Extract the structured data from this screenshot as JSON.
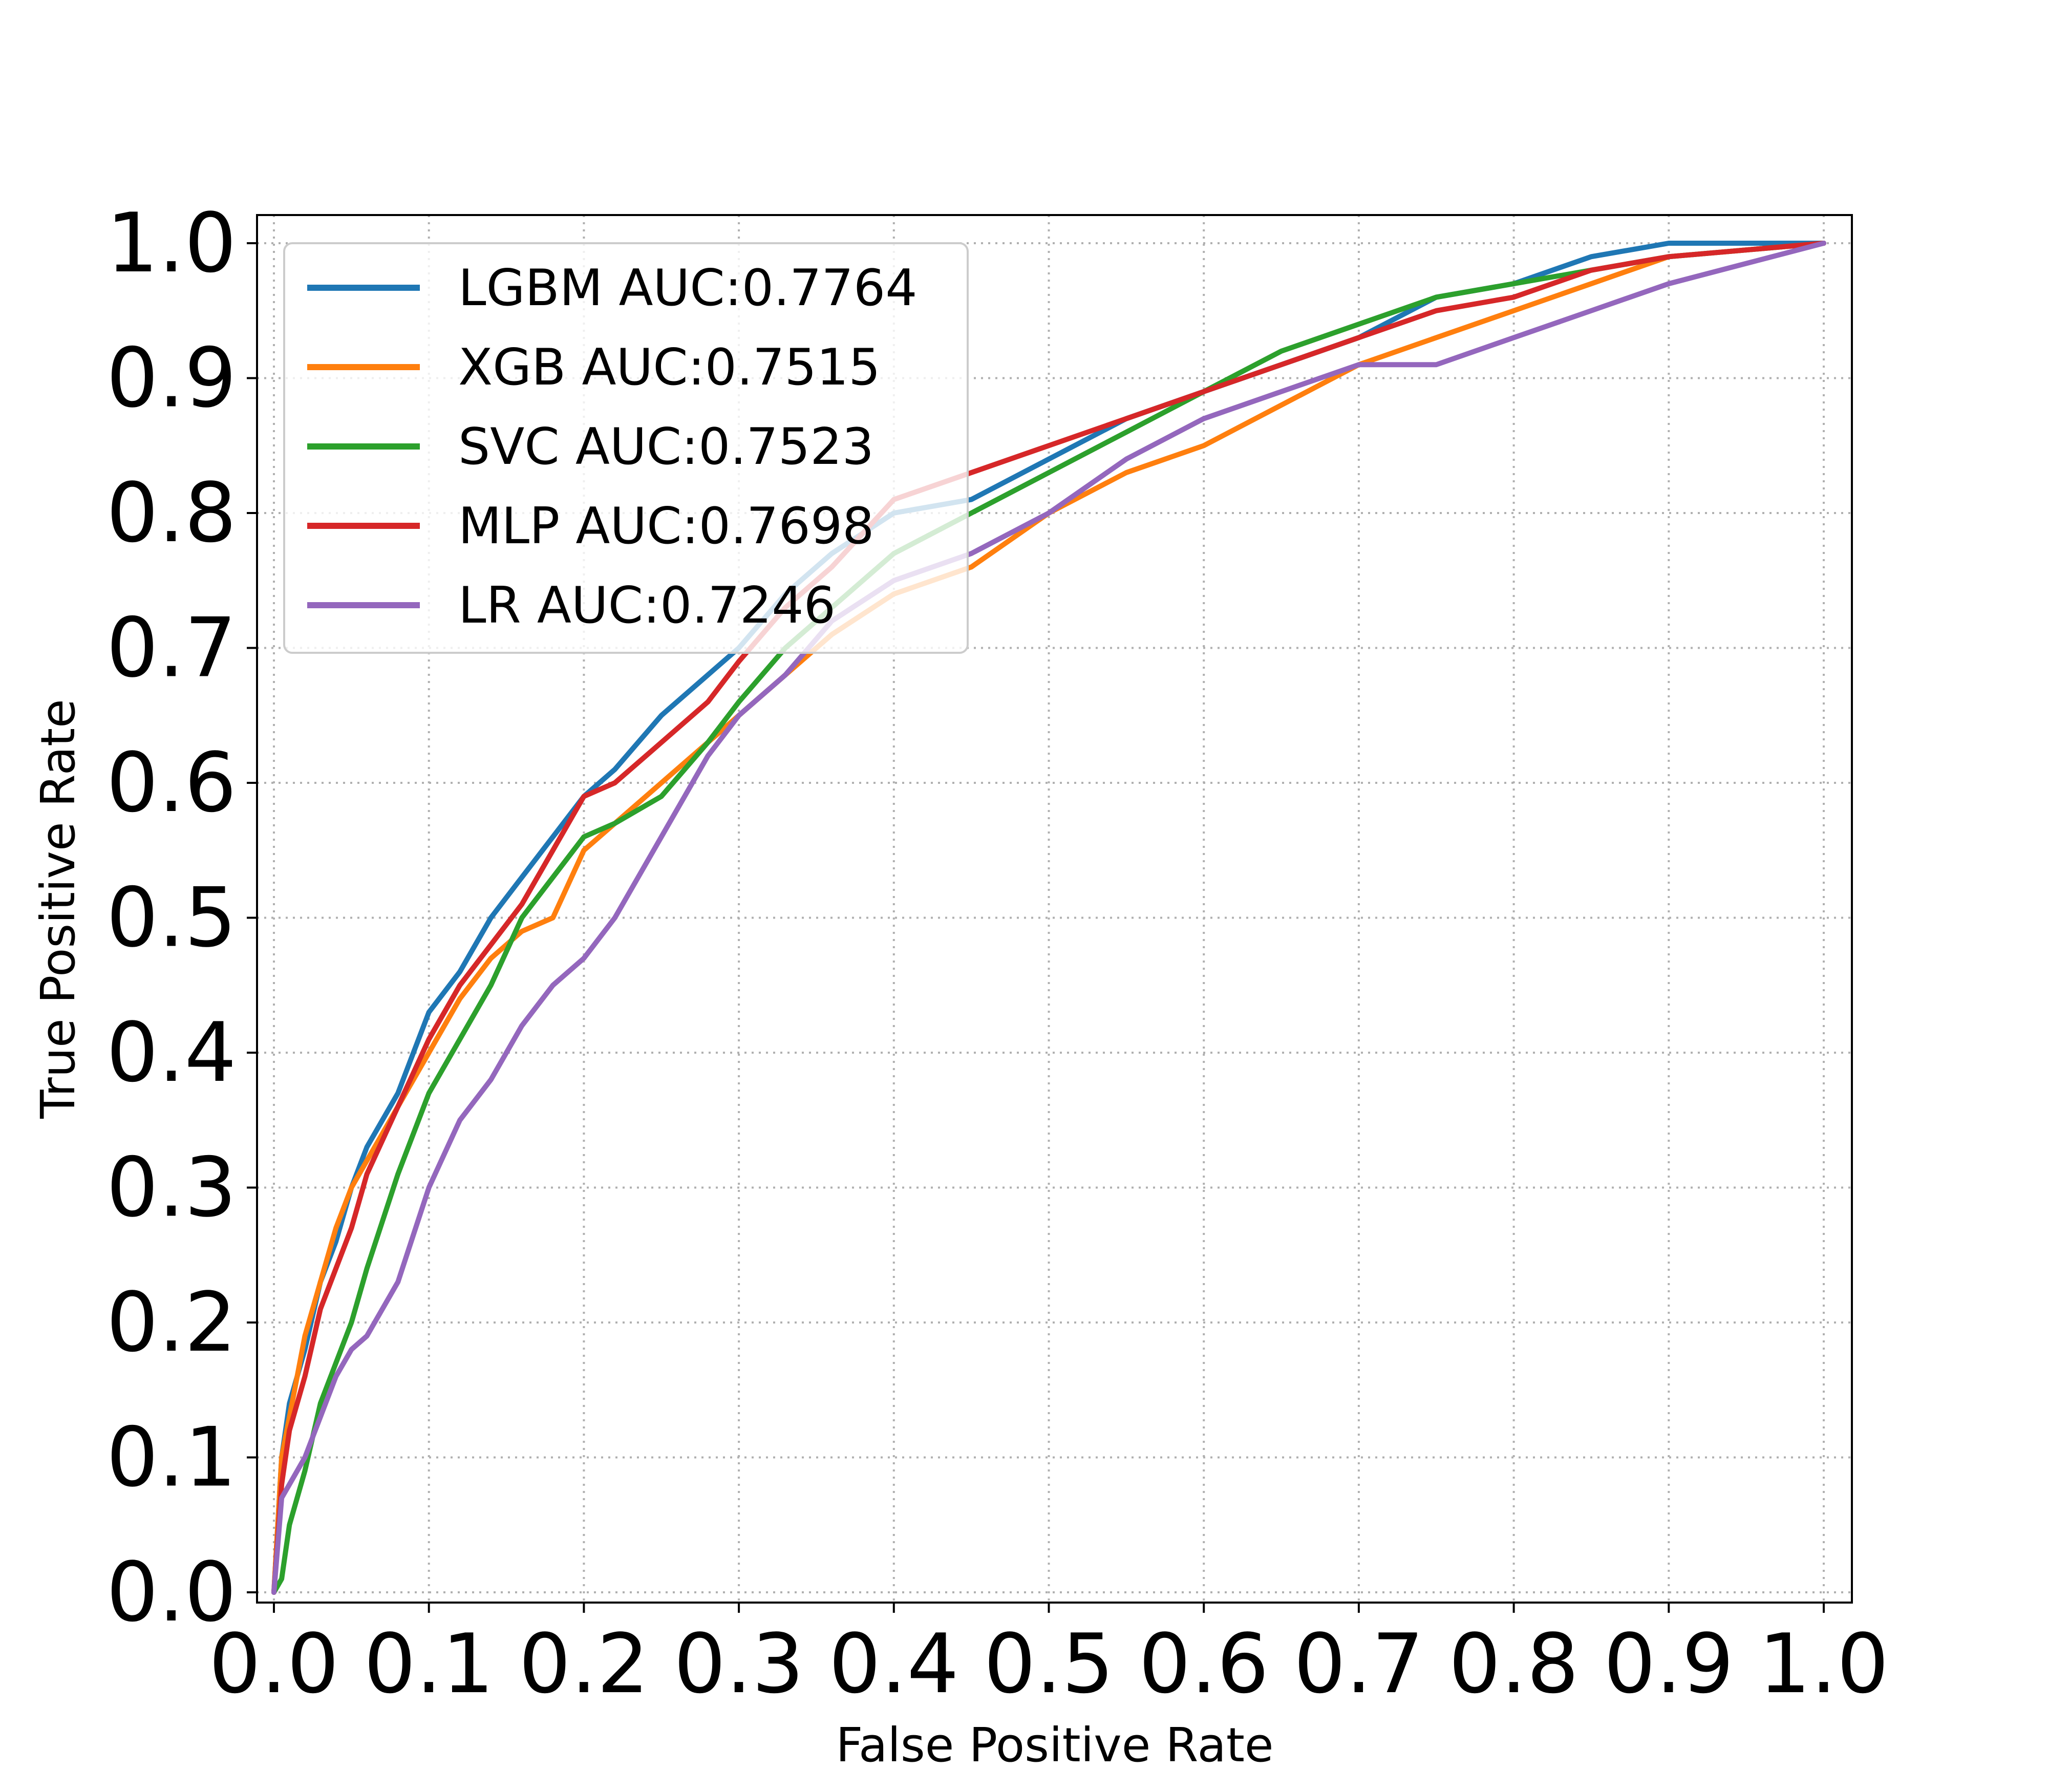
{
  "chart_data": {
    "type": "line",
    "title": "",
    "xlabel": "False Positive Rate",
    "ylabel": "True Positive Rate",
    "xlim": [
      0.0,
      1.0
    ],
    "ylim": [
      0.0,
      1.0
    ],
    "xticks": [
      "0.0",
      "0.1",
      "0.2",
      "0.3",
      "0.4",
      "0.5",
      "0.6",
      "0.7",
      "0.8",
      "0.9",
      "1.0"
    ],
    "yticks": [
      "0.0",
      "0.1",
      "0.2",
      "0.3",
      "0.4",
      "0.5",
      "0.6",
      "0.7",
      "0.8",
      "0.9",
      "1.0"
    ],
    "grid": true,
    "grid_style": "dotted",
    "legend_position": "top-left",
    "series": [
      {
        "name": "LGBM AUC:0.7764",
        "color": "#1f77b4",
        "points": [
          [
            0,
            0
          ],
          [
            0.005,
            0.1
          ],
          [
            0.01,
            0.14
          ],
          [
            0.02,
            0.18
          ],
          [
            0.03,
            0.23
          ],
          [
            0.04,
            0.26
          ],
          [
            0.05,
            0.3
          ],
          [
            0.06,
            0.33
          ],
          [
            0.08,
            0.37
          ],
          [
            0.1,
            0.43
          ],
          [
            0.12,
            0.46
          ],
          [
            0.14,
            0.5
          ],
          [
            0.16,
            0.53
          ],
          [
            0.18,
            0.56
          ],
          [
            0.2,
            0.59
          ],
          [
            0.22,
            0.61
          ],
          [
            0.25,
            0.65
          ],
          [
            0.28,
            0.68
          ],
          [
            0.3,
            0.7
          ],
          [
            0.33,
            0.74
          ],
          [
            0.36,
            0.77
          ],
          [
            0.4,
            0.8
          ],
          [
            0.45,
            0.81
          ],
          [
            0.5,
            0.84
          ],
          [
            0.55,
            0.87
          ],
          [
            0.6,
            0.89
          ],
          [
            0.65,
            0.91
          ],
          [
            0.7,
            0.93
          ],
          [
            0.75,
            0.96
          ],
          [
            0.8,
            0.97
          ],
          [
            0.85,
            0.99
          ],
          [
            0.9,
            1.0
          ],
          [
            1.0,
            1.0
          ]
        ]
      },
      {
        "name": "XGB AUC:0.7515",
        "color": "#ff7f0e",
        "points": [
          [
            0,
            0
          ],
          [
            0.005,
            0.1
          ],
          [
            0.01,
            0.13
          ],
          [
            0.02,
            0.19
          ],
          [
            0.03,
            0.23
          ],
          [
            0.04,
            0.27
          ],
          [
            0.05,
            0.3
          ],
          [
            0.06,
            0.32
          ],
          [
            0.08,
            0.36
          ],
          [
            0.1,
            0.4
          ],
          [
            0.12,
            0.44
          ],
          [
            0.14,
            0.47
          ],
          [
            0.16,
            0.49
          ],
          [
            0.18,
            0.5
          ],
          [
            0.2,
            0.55
          ],
          [
            0.22,
            0.57
          ],
          [
            0.25,
            0.6
          ],
          [
            0.28,
            0.63
          ],
          [
            0.3,
            0.65
          ],
          [
            0.33,
            0.68
          ],
          [
            0.36,
            0.71
          ],
          [
            0.4,
            0.74
          ],
          [
            0.45,
            0.76
          ],
          [
            0.5,
            0.8
          ],
          [
            0.55,
            0.83
          ],
          [
            0.6,
            0.85
          ],
          [
            0.65,
            0.88
          ],
          [
            0.7,
            0.91
          ],
          [
            0.75,
            0.93
          ],
          [
            0.8,
            0.95
          ],
          [
            0.85,
            0.97
          ],
          [
            0.9,
            0.99
          ],
          [
            1.0,
            1.0
          ]
        ]
      },
      {
        "name": "SVC AUC:0.7523",
        "color": "#2ca02c",
        "points": [
          [
            0,
            0
          ],
          [
            0.005,
            0.01
          ],
          [
            0.01,
            0.05
          ],
          [
            0.02,
            0.09
          ],
          [
            0.03,
            0.14
          ],
          [
            0.04,
            0.17
          ],
          [
            0.05,
            0.2
          ],
          [
            0.06,
            0.24
          ],
          [
            0.08,
            0.31
          ],
          [
            0.1,
            0.37
          ],
          [
            0.12,
            0.41
          ],
          [
            0.14,
            0.45
          ],
          [
            0.16,
            0.5
          ],
          [
            0.18,
            0.53
          ],
          [
            0.2,
            0.56
          ],
          [
            0.22,
            0.57
          ],
          [
            0.25,
            0.59
          ],
          [
            0.28,
            0.63
          ],
          [
            0.3,
            0.66
          ],
          [
            0.33,
            0.7
          ],
          [
            0.36,
            0.73
          ],
          [
            0.4,
            0.77
          ],
          [
            0.45,
            0.8
          ],
          [
            0.5,
            0.83
          ],
          [
            0.55,
            0.86
          ],
          [
            0.6,
            0.89
          ],
          [
            0.65,
            0.92
          ],
          [
            0.7,
            0.94
          ],
          [
            0.75,
            0.96
          ],
          [
            0.8,
            0.97
          ],
          [
            0.85,
            0.98
          ],
          [
            0.9,
            0.99
          ],
          [
            1.0,
            1.0
          ]
        ]
      },
      {
        "name": "MLP AUC:0.7698",
        "color": "#d62728",
        "points": [
          [
            0,
            0
          ],
          [
            0.005,
            0.08
          ],
          [
            0.01,
            0.12
          ],
          [
            0.02,
            0.16
          ],
          [
            0.03,
            0.21
          ],
          [
            0.04,
            0.24
          ],
          [
            0.05,
            0.27
          ],
          [
            0.06,
            0.31
          ],
          [
            0.08,
            0.36
          ],
          [
            0.1,
            0.41
          ],
          [
            0.12,
            0.45
          ],
          [
            0.14,
            0.48
          ],
          [
            0.16,
            0.51
          ],
          [
            0.18,
            0.55
          ],
          [
            0.2,
            0.59
          ],
          [
            0.22,
            0.6
          ],
          [
            0.25,
            0.63
          ],
          [
            0.28,
            0.66
          ],
          [
            0.3,
            0.69
          ],
          [
            0.33,
            0.73
          ],
          [
            0.36,
            0.76
          ],
          [
            0.4,
            0.81
          ],
          [
            0.45,
            0.83
          ],
          [
            0.5,
            0.85
          ],
          [
            0.55,
            0.87
          ],
          [
            0.6,
            0.89
          ],
          [
            0.65,
            0.91
          ],
          [
            0.7,
            0.93
          ],
          [
            0.75,
            0.95
          ],
          [
            0.8,
            0.96
          ],
          [
            0.85,
            0.98
          ],
          [
            0.9,
            0.99
          ],
          [
            1.0,
            1.0
          ]
        ]
      },
      {
        "name": "LR AUC:0.7246",
        "color": "#9467bd",
        "points": [
          [
            0,
            0
          ],
          [
            0.005,
            0.07
          ],
          [
            0.01,
            0.08
          ],
          [
            0.02,
            0.1
          ],
          [
            0.03,
            0.13
          ],
          [
            0.04,
            0.16
          ],
          [
            0.05,
            0.18
          ],
          [
            0.06,
            0.19
          ],
          [
            0.08,
            0.23
          ],
          [
            0.1,
            0.3
          ],
          [
            0.12,
            0.35
          ],
          [
            0.14,
            0.38
          ],
          [
            0.16,
            0.42
          ],
          [
            0.18,
            0.45
          ],
          [
            0.2,
            0.47
          ],
          [
            0.22,
            0.5
          ],
          [
            0.25,
            0.56
          ],
          [
            0.28,
            0.62
          ],
          [
            0.3,
            0.65
          ],
          [
            0.33,
            0.68
          ],
          [
            0.36,
            0.72
          ],
          [
            0.4,
            0.75
          ],
          [
            0.45,
            0.77
          ],
          [
            0.5,
            0.8
          ],
          [
            0.55,
            0.84
          ],
          [
            0.6,
            0.87
          ],
          [
            0.65,
            0.89
          ],
          [
            0.7,
            0.91
          ],
          [
            0.75,
            0.91
          ],
          [
            0.8,
            0.93
          ],
          [
            0.85,
            0.95
          ],
          [
            0.9,
            0.97
          ],
          [
            1.0,
            1.0
          ]
        ]
      }
    ]
  }
}
